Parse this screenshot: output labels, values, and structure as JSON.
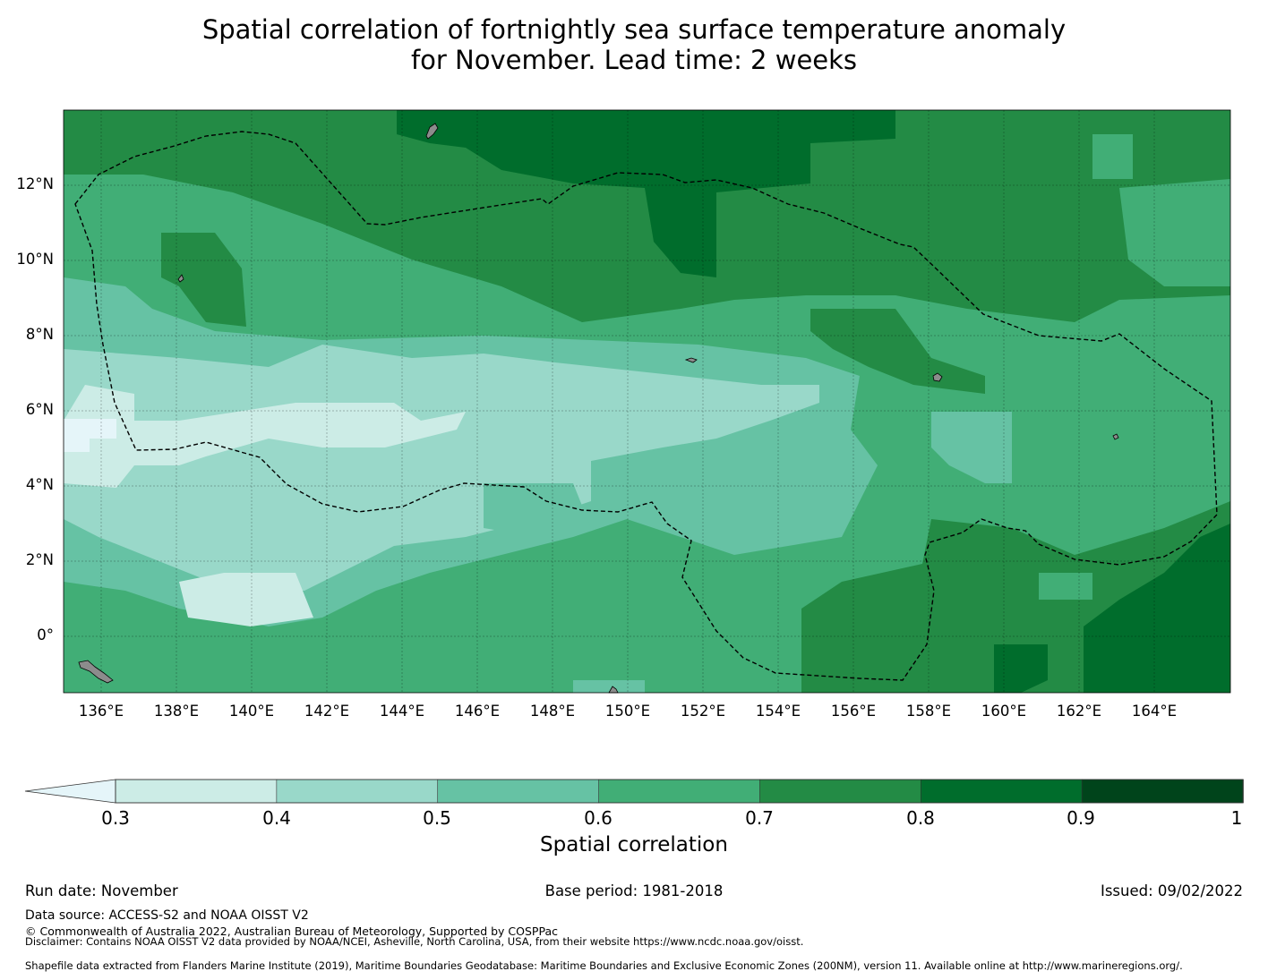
{
  "title": {
    "line1": "Spatial correlation of fortnightly sea surface temperature anomaly",
    "line2": "for November. Lead time: 2 weeks"
  },
  "map": {
    "lat_labels": [
      "12°N",
      "10°N",
      "8°N",
      "6°N",
      "4°N",
      "2°N",
      "0°"
    ],
    "lon_labels": [
      "136°E",
      "138°E",
      "140°E",
      "142°E",
      "144°E",
      "146°E",
      "148°E",
      "150°E",
      "152°E",
      "154°E",
      "156°E",
      "158°E",
      "160°E",
      "162°E",
      "164°E"
    ],
    "land_color": "#8c8c8c",
    "boundary_color": "#000000"
  },
  "colorbar": {
    "ticks": [
      "0.3",
      "0.4",
      "0.5",
      "0.6",
      "0.7",
      "0.8",
      "0.9",
      "1"
    ],
    "colors": [
      "#ccece6",
      "#99d8c9",
      "#66c2a4",
      "#41ae76",
      "#238b45",
      "#006d2c",
      "#00441b"
    ],
    "under_color": "#e5f5f9",
    "label": "Spatial correlation"
  },
  "footer": {
    "run_date": "Run date: November",
    "base_period": "Base period: 1981-2018",
    "issued": "Issued: 09/02/2022",
    "data_source": "Data source: ACCESS-S2 and NOAA OISST V2",
    "copyright": "© Commonwealth of Australia 2022, Australian Bureau of Meteorology, Supported by COSPPac",
    "disclaimer": "Disclaimer: Contains NOAA OISST V2 data provided by NOAA/NCEI, Asheville, North Carolina, USA, from their website https://www.ncdc.noaa.gov/oisst.",
    "shapefile": "Shapefile data extracted from Flanders Marine Institute (2019), Maritime Boundaries Geodatabase: Maritime Boundaries and Exclusive Economic Zones (200NM), version 11. Available online at http://www.marineregions.org/."
  }
}
